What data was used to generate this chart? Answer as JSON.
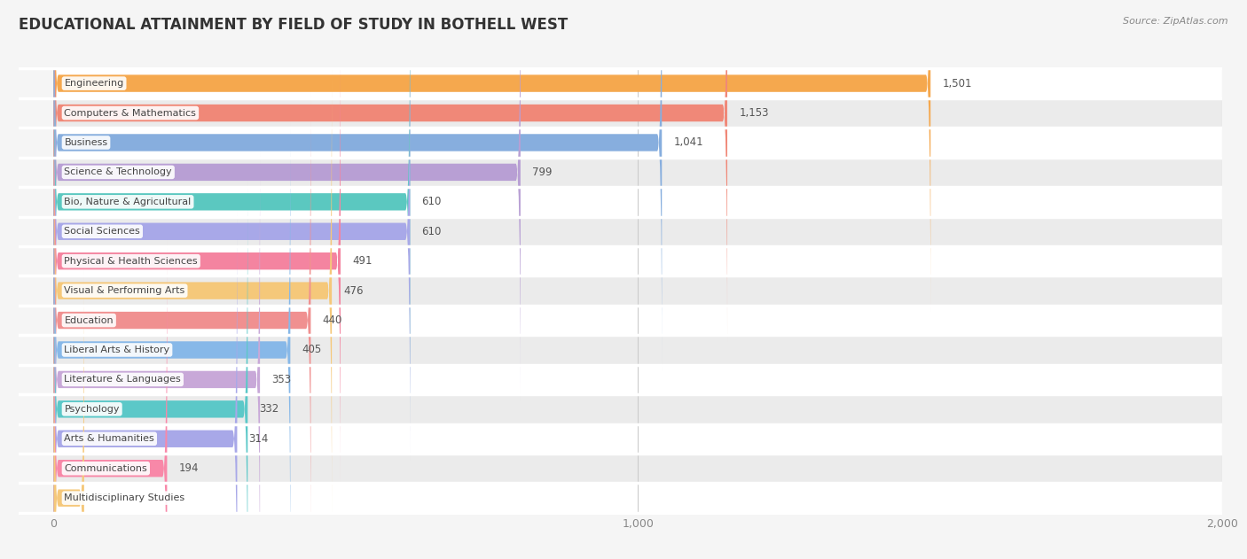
{
  "title": "EDUCATIONAL ATTAINMENT BY FIELD OF STUDY IN BOTHELL WEST",
  "source": "Source: ZipAtlas.com",
  "categories": [
    "Engineering",
    "Computers & Mathematics",
    "Business",
    "Science & Technology",
    "Bio, Nature & Agricultural",
    "Social Sciences",
    "Physical & Health Sciences",
    "Visual & Performing Arts",
    "Education",
    "Liberal Arts & History",
    "Literature & Languages",
    "Psychology",
    "Arts & Humanities",
    "Communications",
    "Multidisciplinary Studies"
  ],
  "values": [
    1501,
    1153,
    1041,
    799,
    610,
    610,
    491,
    476,
    440,
    405,
    353,
    332,
    314,
    194,
    52
  ],
  "bar_colors": [
    "#f5a84e",
    "#f08878",
    "#87aede",
    "#b89fd4",
    "#5bc8c0",
    "#a8a8e8",
    "#f484a0",
    "#f5c87a",
    "#f09090",
    "#87b8e8",
    "#c8a8d8",
    "#5bc8c8",
    "#a8a8e8",
    "#f888a8",
    "#f5c87a"
  ],
  "xlim": [
    0,
    2000
  ],
  "xticks": [
    0,
    1000,
    2000
  ],
  "background_color": "#f5f5f5",
  "row_bg_color": "#ebebeb",
  "bar_height": 0.55,
  "title_fontsize": 12,
  "figwidth": 14.06,
  "figheight": 6.31,
  "dpi": 100
}
